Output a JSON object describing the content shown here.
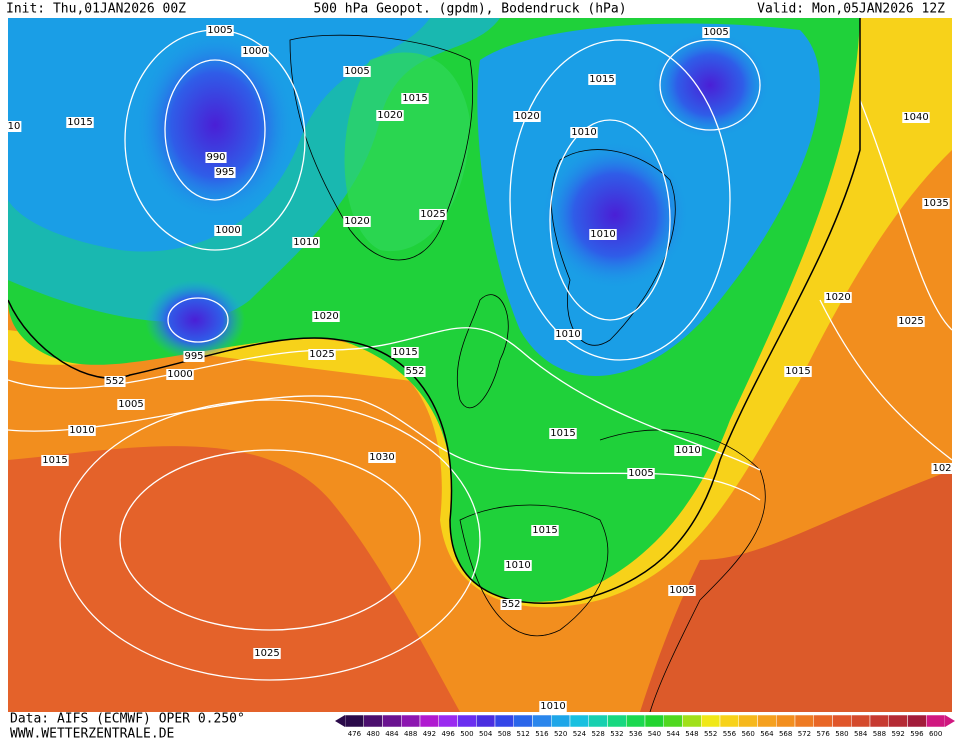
{
  "header": {
    "init": "Init: Thu,01JAN2026 00Z",
    "title": "500 hPa Geopot. (gpdm), Bodendruck (hPa)",
    "valid": "Valid: Mon,05JAN2026 12Z"
  },
  "footer": {
    "source": "Data: AIFS (ECMWF) OPER 0.250°",
    "website": "WWW.WETTERZENTRALE.DE"
  },
  "isobar_labels": [
    "1005",
    "1000",
    "1005",
    "1015",
    "10",
    "1015",
    "1020",
    "1020",
    "1015",
    "1005",
    "1010",
    "1040",
    "990",
    "995",
    "1000",
    "1020",
    "1025",
    "1010",
    "1010",
    "1035",
    "1020",
    "1020",
    "1025",
    "995",
    "1000",
    "1025",
    "1015",
    "552",
    "552",
    "1010",
    "1015",
    "1005",
    "1010",
    "1015",
    "1030",
    "1015",
    "1010",
    "1005",
    "102",
    "1015",
    "1010",
    "552",
    "1005",
    "1025",
    "1010"
  ],
  "colorbar": {
    "ticks": [
      476,
      480,
      484,
      488,
      492,
      496,
      500,
      504,
      508,
      512,
      516,
      520,
      524,
      528,
      532,
      536,
      540,
      544,
      548,
      552,
      556,
      560,
      564,
      568,
      572,
      576,
      580,
      584,
      588,
      592,
      596,
      600
    ],
    "colors": [
      "#2a0a4a",
      "#4b0f6e",
      "#6a1390",
      "#8c16b0",
      "#b01ad0",
      "#9a2af0",
      "#6a2ef0",
      "#4a2ee0",
      "#3446e8",
      "#2a66ea",
      "#2a86ec",
      "#1ea6e8",
      "#18c0e0",
      "#18d0b0",
      "#18d880",
      "#1cd850",
      "#22d430",
      "#50d820",
      "#a0e01a",
      "#f0e818",
      "#f7d21a",
      "#f6b81c",
      "#f5a01e",
      "#f28e1e",
      "#ee7a22",
      "#e86626",
      "#e0562a",
      "#d44a2c",
      "#c63a30",
      "#b42a34",
      "#a21c3a",
      "#d01880"
    ]
  }
}
